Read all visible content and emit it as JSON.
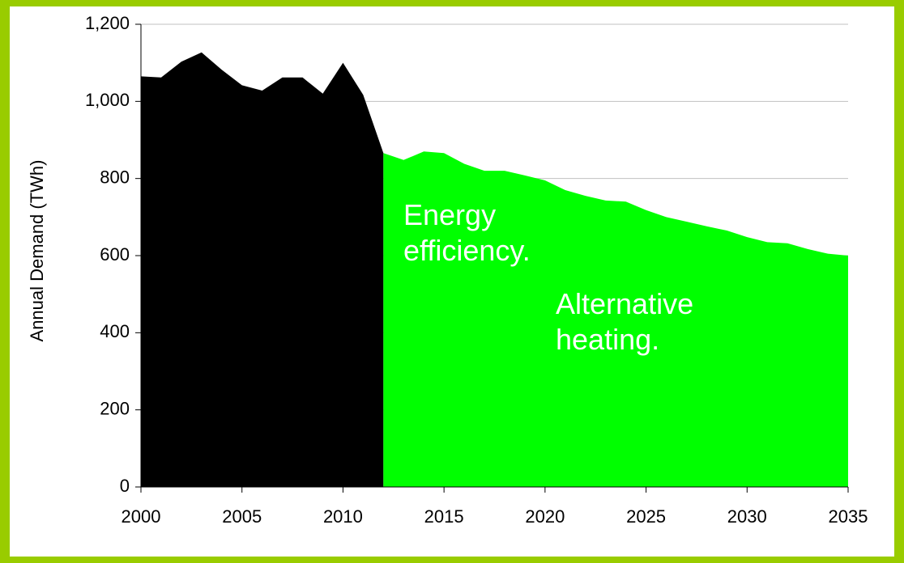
{
  "chart_data": {
    "type": "area",
    "ylabel": "Annual Demand (TWh)",
    "xlim": [
      2000,
      2035
    ],
    "xticks": [
      2000,
      2005,
      2010,
      2015,
      2020,
      2025,
      2030,
      2035
    ],
    "ylim": [
      0,
      1200
    ],
    "yticks": [
      0,
      200,
      400,
      600,
      800,
      {
        "value": 1000,
        "label": "1,000"
      },
      {
        "value": 1200,
        "label": "1,200"
      }
    ],
    "grid": true,
    "series": [
      {
        "color": "#000000",
        "x": [
          2000,
          2001,
          2002,
          2003,
          2004,
          2005,
          2006,
          2007,
          2008,
          2009,
          2010,
          2011,
          2012
        ],
        "values": [
          1065,
          1062,
          1103,
          1127,
          1082,
          1042,
          1028,
          1062,
          1062,
          1020,
          1100,
          1017,
          866
        ]
      },
      {
        "color": "#00ff00",
        "x": [
          2012,
          2013,
          2014,
          2015,
          2016,
          2017,
          2018,
          2019,
          2020,
          2021,
          2022,
          2023,
          2024,
          2025,
          2026,
          2027,
          2028,
          2029,
          2030,
          2031,
          2032,
          2033,
          2034,
          2035
        ],
        "values": [
          866,
          848,
          870,
          866,
          838,
          820,
          820,
          808,
          795,
          770,
          755,
          743,
          740,
          718,
          700,
          688,
          676,
          665,
          648,
          635,
          632,
          617,
          605,
          600
        ]
      }
    ],
    "annotations": [
      {
        "lines": [
          "Energy",
          "efficiency."
        ]
      },
      {
        "lines": [
          "Alternative",
          "heating."
        ]
      }
    ]
  }
}
